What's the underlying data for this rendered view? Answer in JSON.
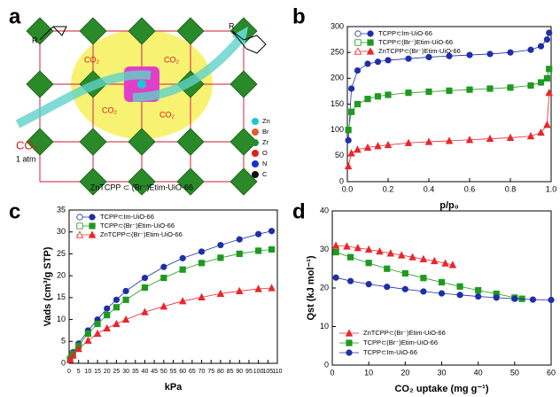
{
  "diagram": {
    "panel": "a",
    "r_left": "R",
    "r_right": "R",
    "co2_inner": [
      "CO₂",
      "CO₂",
      "CO₂",
      "CO₂"
    ],
    "co2_outer": "CO₂",
    "pressure": "1 atm",
    "caption": "ZnTCPP ⊂ (Br⁻)Etim-UiO-66",
    "legend": [
      "Zn",
      "Br",
      "Zr",
      "O",
      "N",
      "C"
    ]
  },
  "chart_data": [
    {
      "panel": "b",
      "type": "line",
      "xlabel": "p/p₀",
      "legend": "upper left",
      "x": [
        0.005,
        0.02,
        0.05,
        0.1,
        0.15,
        0.2,
        0.3,
        0.4,
        0.5,
        0.6,
        0.7,
        0.8,
        0.9,
        0.95,
        0.98,
        0.99
      ],
      "xlim": [
        0,
        1
      ],
      "ylim": [
        0,
        300
      ],
      "xticks": [
        {
          "value": 0,
          "label": "0.0"
        },
        0.2,
        0.4,
        0.6,
        0.8,
        {
          "value": 1,
          "label": "1.0"
        }
      ],
      "yticks": [
        0,
        50,
        100,
        150,
        200,
        250,
        300
      ],
      "series": [
        {
          "name": "TCPP⊂Im-UiO-66",
          "color": "#1f2fa8",
          "marker": "circle",
          "values": [
            80,
            180,
            215,
            228,
            232,
            235,
            238,
            241,
            243,
            245,
            247,
            250,
            255,
            262,
            275,
            288
          ]
        },
        {
          "name": "TCPP⊂(Br⁻)Etim-UiO-66",
          "color": "#1e9a1e",
          "marker": "square",
          "values": [
            100,
            135,
            150,
            160,
            165,
            168,
            172,
            174,
            176,
            178,
            180,
            182,
            186,
            192,
            200,
            218
          ]
        },
        {
          "name": "ZnTCPP⊂(Br⁻)Etim-UiO-66",
          "color": "#e8262b",
          "marker": "triangle",
          "values": [
            30,
            55,
            62,
            66,
            69,
            71,
            75,
            77,
            79,
            81,
            83,
            85,
            88,
            95,
            110,
            172
          ]
        }
      ]
    },
    {
      "panel": "c",
      "type": "line",
      "xlabel": "kPa",
      "ylabel": "Vads (cm³/g STP)",
      "legend": "upper left",
      "x": [
        0.5,
        2,
        5,
        10,
        15,
        20,
        25,
        30,
        40,
        50,
        60,
        70,
        80,
        90,
        100,
        107
      ],
      "xlim": [
        0,
        110
      ],
      "ylim": [
        0,
        35
      ],
      "xticks": [
        0,
        5,
        10,
        15,
        20,
        25,
        30,
        35,
        40,
        45,
        50,
        55,
        60,
        65,
        70,
        75,
        80,
        85,
        90,
        95,
        100,
        105,
        110
      ],
      "yticks": [
        0,
        5,
        10,
        15,
        20,
        25,
        30,
        35
      ],
      "series": [
        {
          "name": "TCPP⊂Im-UiO-66",
          "color": "#1f2fa8",
          "marker": "circle",
          "values": [
            1,
            2.5,
            4.5,
            7.5,
            10,
            12.5,
            14.5,
            16.5,
            19.5,
            22,
            24,
            25.5,
            27,
            28.3,
            29.5,
            30.2
          ]
        },
        {
          "name": "TCPP⊂(Br⁻)Etim-UiO-66",
          "color": "#1e9a1e",
          "marker": "square",
          "values": [
            1,
            2.2,
            4,
            6.8,
            9,
            11,
            12.8,
            14.5,
            17.3,
            19.5,
            21.4,
            22.9,
            24.1,
            25,
            25.7,
            26
          ]
        },
        {
          "name": "ZnTCPP⊂(Br⁻)Etim-UiO-66",
          "color": "#e8262b",
          "marker": "triangle",
          "values": [
            0.8,
            1.8,
            3.3,
            5.2,
            6.8,
            8,
            9,
            10,
            11.7,
            13,
            14.2,
            15.1,
            15.9,
            16.5,
            17,
            17.2
          ]
        }
      ]
    },
    {
      "panel": "d",
      "type": "line",
      "xlabel": "CO₂ uptake (mg g⁻¹)",
      "ylabel": "Qst (kJ mol⁻¹)",
      "legend": "lower left",
      "xlim": [
        0,
        60
      ],
      "ylim": [
        0,
        40
      ],
      "xticks": [
        0,
        10,
        20,
        30,
        40,
        50,
        60
      ],
      "yticks": [
        0,
        10,
        20,
        30,
        40
      ],
      "series": [
        {
          "name": "ZnTCPP⊂(Br⁻)Etim-UiO-66",
          "color": "#e8262b",
          "marker": "triangle",
          "x": [
            1,
            4,
            7,
            10,
            13,
            16,
            19,
            22,
            25,
            28,
            31,
            33
          ],
          "values": [
            31,
            30.8,
            30.4,
            30,
            29.5,
            29,
            28.5,
            28,
            27.5,
            27,
            26.4,
            26
          ]
        },
        {
          "name": "TCPP⊂(Br⁻)Etim-UiO-66",
          "color": "#1e9a1e",
          "marker": "square",
          "x": [
            1,
            5,
            10,
            15,
            20,
            25,
            30,
            35,
            40,
            45,
            50,
            52
          ],
          "values": [
            29.3,
            28,
            26.5,
            25,
            23.8,
            22.6,
            21.5,
            20.4,
            19.4,
            18.5,
            17.5,
            17.2
          ]
        },
        {
          "name": "TCPP⊂Im-UiO-66",
          "color": "#1f2fa8",
          "marker": "circle",
          "x": [
            1,
            5,
            10,
            15,
            20,
            25,
            30,
            35,
            40,
            45,
            50,
            55,
            60
          ],
          "values": [
            22.7,
            21.8,
            21,
            20.3,
            19.7,
            19.1,
            18.6,
            18.2,
            17.8,
            17.5,
            17.2,
            17,
            16.9
          ]
        }
      ]
    }
  ]
}
